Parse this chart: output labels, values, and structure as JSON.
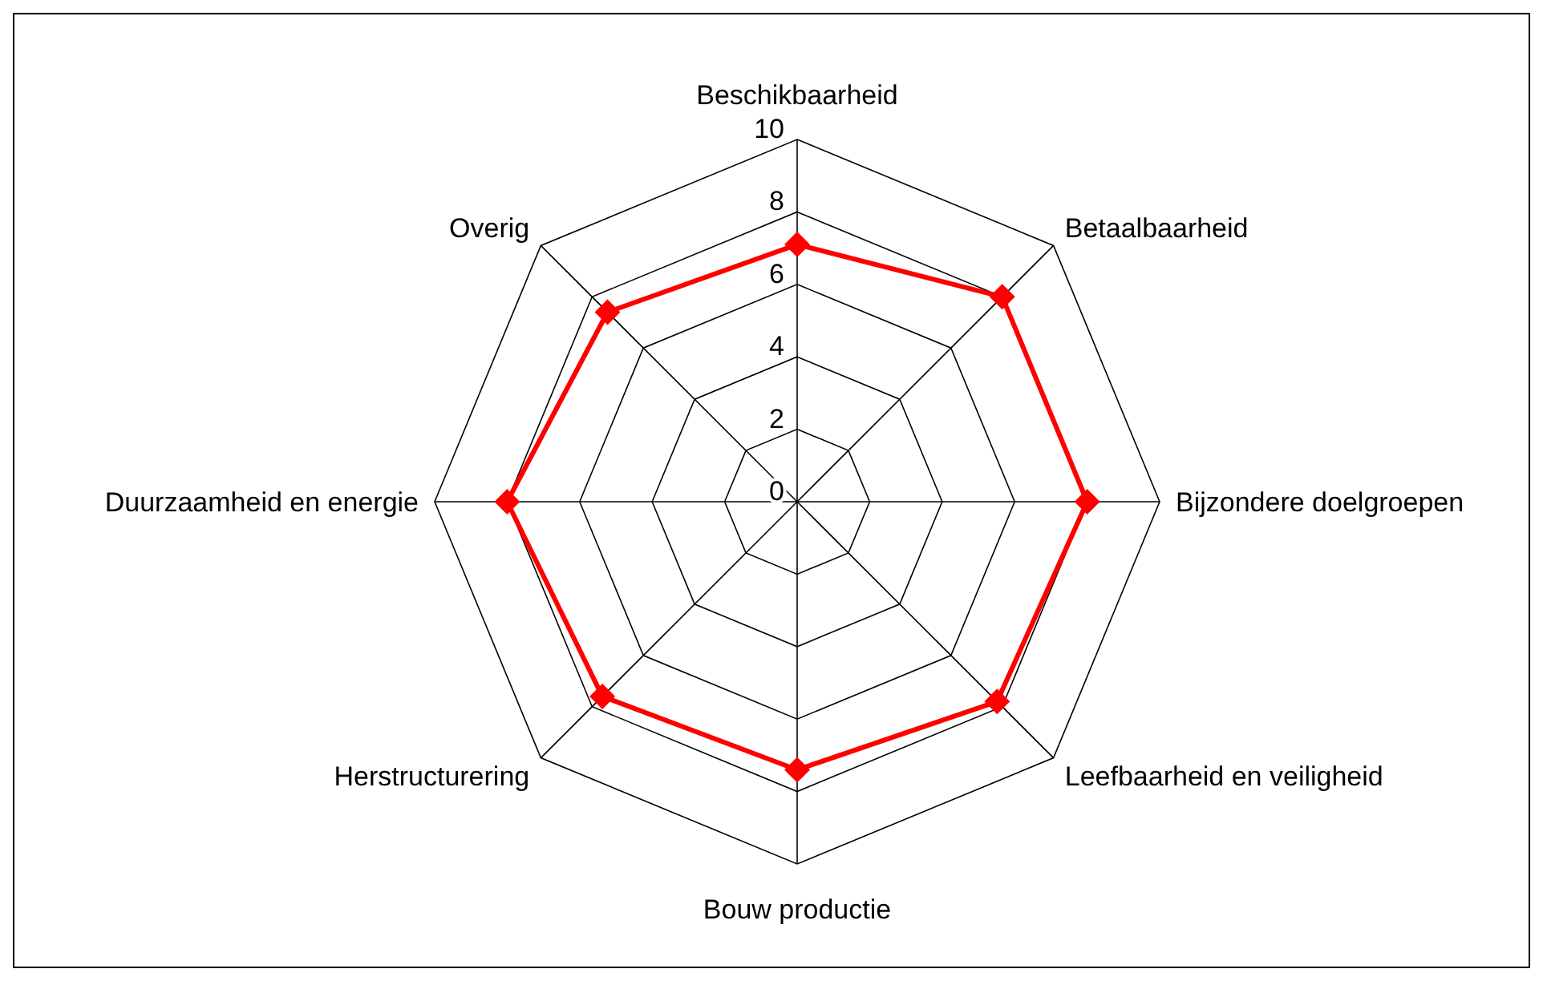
{
  "chart_data": {
    "type": "radar",
    "categories": [
      "Beschikbaarheid",
      "Betaalbaarheid",
      "Bijzondere doelgroepen",
      "Leefbaarheid en veiligheid",
      "Bouw productie",
      "Herstructurering",
      "Duurzaamheid en energie",
      "Overig"
    ],
    "series": [
      {
        "color": "#ff0000",
        "values": [
          7.1,
          8.0,
          8.0,
          7.8,
          7.4,
          7.6,
          8.0,
          7.4
        ]
      }
    ],
    "ylim": [
      0,
      10
    ],
    "yticks": [
      0,
      2,
      4,
      6,
      8,
      10
    ],
    "grid": true,
    "marker": "diamond",
    "line_style": "solid"
  }
}
